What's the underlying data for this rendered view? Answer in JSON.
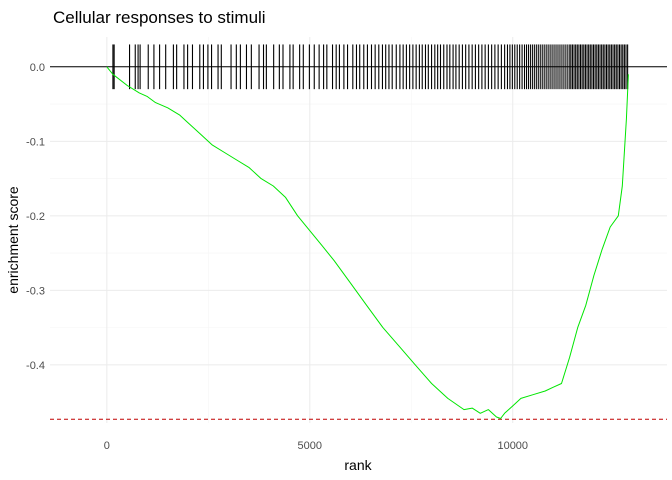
{
  "chart_data": {
    "type": "line",
    "title": "Cellular responses to stimuli",
    "xlabel": "rank",
    "ylabel": "enrichment score",
    "xlim": [
      -1400,
      13800
    ],
    "ylim": [
      -0.478,
      0.04
    ],
    "x_ticks": [
      {
        "value": 0,
        "label": "0"
      },
      {
        "value": 5000,
        "label": "5000"
      },
      {
        "value": 10000,
        "label": "10000"
      }
    ],
    "y_ticks": [
      {
        "value": 0.0,
        "label": "0.0"
      },
      {
        "value": -0.1,
        "label": "-0.1"
      },
      {
        "value": -0.2,
        "label": "-0.2"
      },
      {
        "value": -0.3,
        "label": "-0.3"
      },
      {
        "value": -0.4,
        "label": "-0.4"
      }
    ],
    "grid": true,
    "series": [
      {
        "color": "#00e600",
        "x": [
          0,
          150,
          500,
          800,
          1000,
          1200,
          1500,
          1800,
          2000,
          2300,
          2600,
          2900,
          3200,
          3500,
          3800,
          4100,
          4400,
          4700,
          5000,
          5300,
          5600,
          6000,
          6400,
          6800,
          7200,
          7600,
          8000,
          8400,
          8800,
          9000,
          9200,
          9400,
          9600,
          9700,
          9800,
          10000,
          10200,
          10500,
          10800,
          11000,
          11200,
          11400,
          11600,
          11800,
          12000,
          12200,
          12400,
          12600,
          12700,
          12800,
          12850
        ],
        "y": [
          0.0,
          -0.01,
          -0.025,
          -0.035,
          -0.04,
          -0.048,
          -0.055,
          -0.065,
          -0.075,
          -0.09,
          -0.105,
          -0.115,
          -0.125,
          -0.135,
          -0.15,
          -0.16,
          -0.175,
          -0.2,
          -0.22,
          -0.24,
          -0.26,
          -0.29,
          -0.32,
          -0.35,
          -0.375,
          -0.4,
          -0.425,
          -0.445,
          -0.46,
          -0.458,
          -0.465,
          -0.46,
          -0.47,
          -0.472,
          -0.465,
          -0.455,
          -0.445,
          -0.44,
          -0.435,
          -0.43,
          -0.425,
          -0.39,
          -0.35,
          -0.32,
          -0.28,
          -0.245,
          -0.215,
          -0.2,
          -0.16,
          -0.07,
          -0.01
        ]
      }
    ],
    "hlines": [
      {
        "y": 0.0,
        "color": "#000000",
        "style": "solid"
      },
      {
        "y": -0.473,
        "color": "#c00000",
        "style": "dashed"
      }
    ],
    "rug": {
      "y_range": [
        -0.03,
        0.03
      ],
      "color": "#000000",
      "positions": [
        150,
        180,
        560,
        700,
        770,
        820,
        1020,
        1160,
        1300,
        1450,
        1640,
        1720,
        1900,
        1990,
        2110,
        2290,
        2380,
        2490,
        2580,
        2740,
        2820,
        3060,
        3190,
        3290,
        3440,
        3560,
        3750,
        3860,
        3930,
        4110,
        4250,
        4340,
        4510,
        4590,
        4750,
        4840,
        4990,
        5110,
        5230,
        5340,
        5420,
        5560,
        5650,
        5730,
        5840,
        5930,
        6060,
        6150,
        6230,
        6330,
        6420,
        6520,
        6610,
        6700,
        6790,
        6870,
        6950,
        7030,
        7130,
        7220,
        7300,
        7380,
        7460,
        7540,
        7620,
        7700,
        7770,
        7850,
        7920,
        8000,
        8080,
        8150,
        8220,
        8300,
        8380,
        8450,
        8530,
        8600,
        8680,
        8760,
        8840,
        8920,
        9000,
        9080,
        9160,
        9240,
        9320,
        9400,
        9480,
        9560,
        9640,
        9720,
        9800,
        9870,
        9930,
        9990,
        10050,
        10110,
        10170,
        10230,
        10290,
        10340,
        10390,
        10440,
        10490,
        10540,
        10590,
        10640,
        10690,
        10740,
        10790,
        10840,
        10890,
        10940,
        10990,
        11040,
        11090,
        11140,
        11190,
        11240,
        11290,
        11340,
        11390,
        11430,
        11470,
        11510,
        11550,
        11590,
        11630,
        11670,
        11710,
        11750,
        11790,
        11830,
        11870,
        11910,
        11950,
        11990,
        12030,
        12070,
        12110,
        12150,
        12190,
        12230,
        12270,
        12310,
        12350,
        12390,
        12430,
        12470,
        12510,
        12550,
        12590,
        12630,
        12670,
        12710,
        12750,
        12790,
        12830
      ]
    }
  }
}
